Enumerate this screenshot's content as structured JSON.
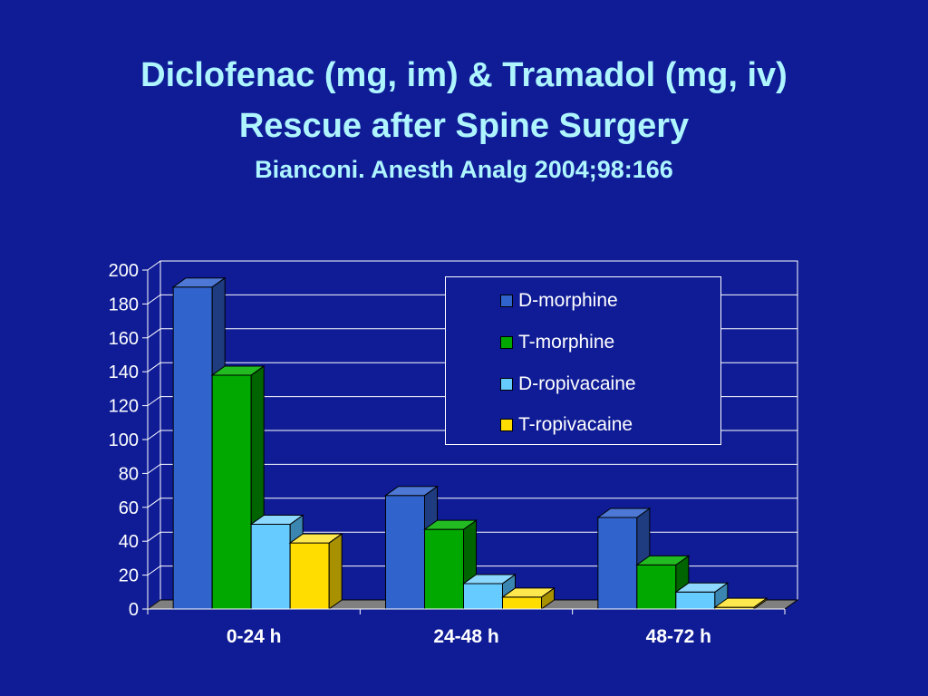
{
  "title": {
    "line1": "Diclofenac (mg, im) & Tramadol (mg, iv)",
    "line2": "Rescue after Spine Surgery",
    "line3": "Bianconi.  Anesth Analg 2004;98:166"
  },
  "colors": {
    "background": "#0f1c96",
    "title": "#aef5ff",
    "axis_text": "#ffffff",
    "floor": "#808080"
  },
  "chart_data": {
    "type": "bar",
    "categories": [
      "0-24 h",
      "24-48 h",
      "48-72 h"
    ],
    "series": [
      {
        "name": "D-morphine",
        "values": [
          190,
          67,
          54
        ],
        "color": "#3163cc",
        "side": "#1f3c80",
        "top": "#4d78d6"
      },
      {
        "name": "T-morphine",
        "values": [
          138,
          47,
          26
        ],
        "color": "#00a800",
        "side": "#006400",
        "top": "#22bb22"
      },
      {
        "name": "D-ropivacaine",
        "values": [
          50,
          15,
          10
        ],
        "color": "#66ccff",
        "side": "#3a86b0",
        "top": "#8cd8ff"
      },
      {
        "name": "T-ropivacaine",
        "values": [
          39,
          7,
          1
        ],
        "color": "#ffdd00",
        "side": "#a89100",
        "top": "#ffe84d"
      }
    ],
    "yticks": [
      0,
      20,
      40,
      60,
      80,
      100,
      120,
      140,
      160,
      180,
      200
    ],
    "ylim": [
      0,
      200
    ],
    "grid": true,
    "legend_position": "top-right",
    "three_d": true
  }
}
